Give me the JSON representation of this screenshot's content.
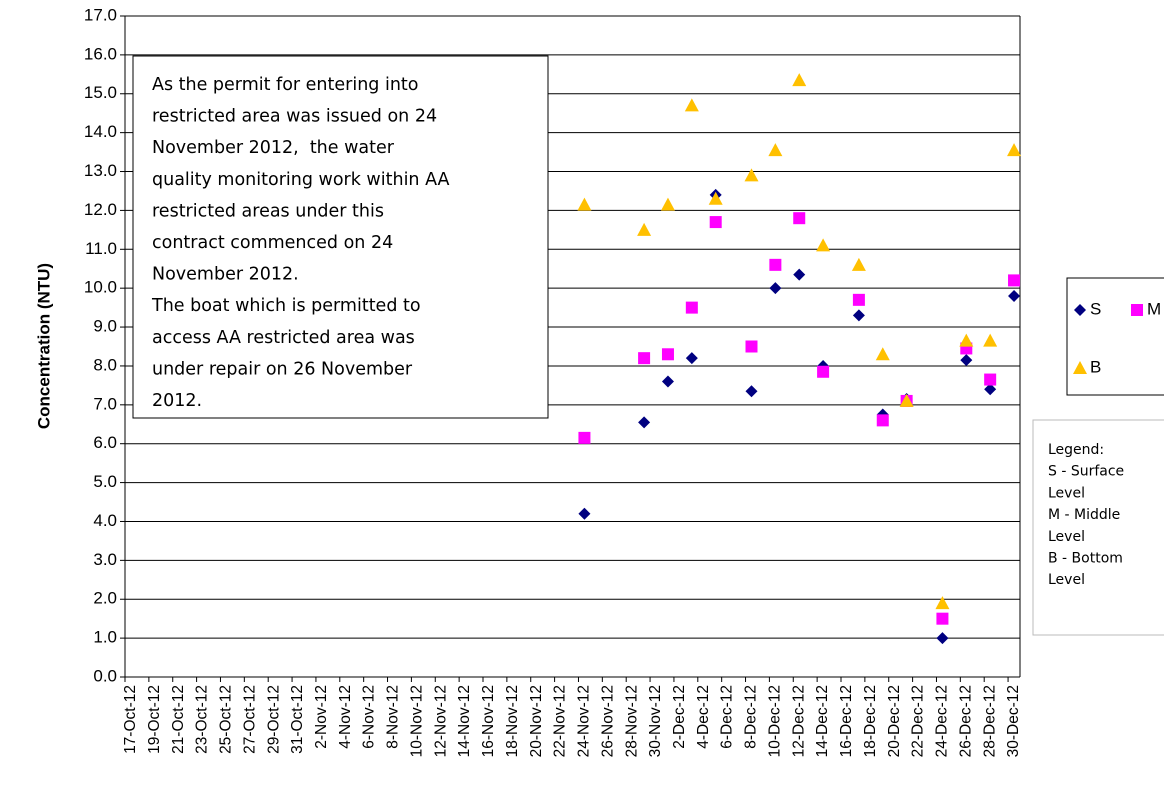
{
  "chart_data": {
    "type": "scatter",
    "y_label": "Concentration (NTU)",
    "categories": [
      "17-Oct-12",
      null,
      "19-Oct-12",
      null,
      "21-Oct-12",
      null,
      "23-Oct-12",
      null,
      "25-Oct-12",
      null,
      "27-Oct-12",
      null,
      "29-Oct-12",
      null,
      "31-Oct-12",
      null,
      "2-Nov-12",
      null,
      "4-Nov-12",
      null,
      "6-Nov-12",
      null,
      "8-Nov-12",
      null,
      "10-Nov-12",
      null,
      "12-Nov-12",
      null,
      "14-Nov-12",
      null,
      "16-Nov-12",
      null,
      "18-Nov-12",
      null,
      "20-Nov-12",
      null,
      "22-Nov-12",
      null,
      "24-Nov-12",
      null,
      "26-Nov-12",
      null,
      "28-Nov-12",
      null,
      "30-Nov-12",
      null,
      "2-Dec-12",
      null,
      "4-Dec-12",
      null,
      "6-Dec-12",
      null,
      "8-Dec-12",
      null,
      "10-Dec-12",
      null,
      "12-Dec-12",
      null,
      "14-Dec-12",
      null,
      "16-Dec-12",
      null,
      "18-Dec-12",
      null,
      "20-Dec-12",
      null,
      "22-Dec-12",
      null,
      "24-Dec-12",
      null,
      "26-Dec-12",
      null,
      "28-Dec-12",
      null,
      "30-Dec-12"
    ],
    "series": [
      {
        "name": "S",
        "color": "#000080",
        "marker": "diamond",
        "values": [
          null,
          null,
          null,
          null,
          null,
          null,
          null,
          null,
          null,
          null,
          null,
          null,
          null,
          null,
          null,
          null,
          null,
          null,
          null,
          null,
          null,
          null,
          null,
          null,
          null,
          null,
          null,
          null,
          null,
          null,
          null,
          null,
          null,
          null,
          null,
          null,
          null,
          null,
          4.2,
          null,
          null,
          null,
          null,
          6.55,
          null,
          7.6,
          null,
          8.2,
          null,
          12.4,
          null,
          null,
          7.35,
          null,
          10.0,
          null,
          10.35,
          null,
          8.0,
          null,
          null,
          9.3,
          null,
          6.75,
          null,
          7.15,
          null,
          null,
          1.0,
          null,
          8.15,
          null,
          7.4,
          null,
          9.8
        ]
      },
      {
        "name": "M",
        "color": "#ff00ff",
        "marker": "square",
        "values": [
          null,
          null,
          null,
          null,
          null,
          null,
          null,
          null,
          null,
          null,
          null,
          null,
          null,
          null,
          null,
          null,
          null,
          null,
          null,
          null,
          null,
          null,
          null,
          null,
          null,
          null,
          null,
          null,
          null,
          null,
          null,
          null,
          null,
          null,
          null,
          null,
          null,
          null,
          6.15,
          null,
          null,
          null,
          null,
          8.2,
          null,
          8.3,
          null,
          9.5,
          null,
          11.7,
          null,
          null,
          8.5,
          null,
          10.6,
          null,
          11.8,
          null,
          7.85,
          null,
          null,
          9.7,
          null,
          6.6,
          null,
          7.1,
          null,
          null,
          1.5,
          null,
          8.45,
          null,
          7.65,
          null,
          10.2
        ]
      },
      {
        "name": "B",
        "color": "#ffc000",
        "marker": "triangle",
        "values": [
          null,
          null,
          null,
          null,
          null,
          null,
          null,
          null,
          null,
          null,
          null,
          null,
          null,
          null,
          null,
          null,
          null,
          null,
          null,
          null,
          null,
          null,
          null,
          null,
          null,
          null,
          null,
          null,
          null,
          null,
          null,
          null,
          null,
          null,
          null,
          null,
          null,
          null,
          12.15,
          null,
          null,
          null,
          null,
          11.5,
          null,
          12.15,
          null,
          14.7,
          null,
          12.3,
          null,
          null,
          12.9,
          null,
          13.55,
          null,
          15.35,
          null,
          11.1,
          null,
          null,
          10.6,
          null,
          8.3,
          null,
          7.1,
          null,
          null,
          1.9,
          null,
          8.65,
          null,
          8.65,
          null,
          13.55
        ]
      }
    ],
    "ylim": [
      0,
      17
    ],
    "yticks": [
      {
        "value": 0,
        "label": "0.0"
      },
      {
        "value": 1,
        "label": "1.0"
      },
      {
        "value": 2,
        "label": "2.0"
      },
      {
        "value": 3,
        "label": "3.0"
      },
      {
        "value": 4,
        "label": "4.0"
      },
      {
        "value": 5,
        "label": "5.0"
      },
      {
        "value": 6,
        "label": "6.0"
      },
      {
        "value": 7,
        "label": "7.0"
      },
      {
        "value": 8,
        "label": "8.0"
      },
      {
        "value": 9,
        "label": "9.0"
      },
      {
        "value": 10,
        "label": "10.0"
      },
      {
        "value": 11,
        "label": "11.0"
      },
      {
        "value": 12,
        "label": "12.0"
      },
      {
        "value": 13,
        "label": "13.0"
      },
      {
        "value": 14,
        "label": "14.0"
      },
      {
        "value": 15,
        "label": "15.0"
      },
      {
        "value": 16,
        "label": "16.0"
      },
      {
        "value": 17,
        "label": "17.0"
      }
    ],
    "grid": true,
    "annotation": [
      "As the permit for entering into",
      "restricted area was issued on 24",
      "November 2012,  the water",
      "quality monitoring work within AA",
      "restricted areas under this",
      "contract commenced on 24",
      "November 2012.",
      "The boat which is permitted to",
      "access AA restricted area was",
      "under repair on 26 November",
      "2012."
    ],
    "legend_note": [
      "Legend:",
      "S - Surface",
      "Level",
      "M - Middle",
      "Level",
      "B - Bottom",
      "Level"
    ]
  }
}
